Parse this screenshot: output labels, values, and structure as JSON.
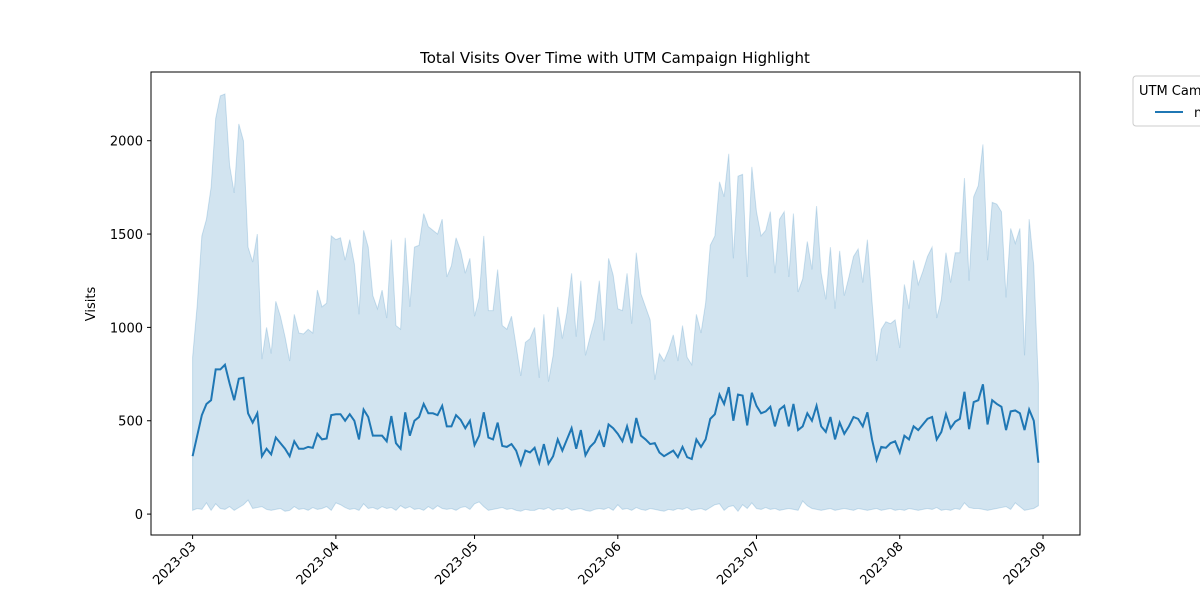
{
  "chart_data": {
    "type": "line",
    "title": "Total Visits Over Time with UTM Campaign Highlight",
    "y_label": "Visits",
    "legend_title": "UTM Campaign",
    "legend_position": "upper right outside",
    "x": [
      "2023-03-01",
      "2023-03-02",
      "2023-03-03",
      "2023-03-04",
      "2023-03-05",
      "2023-03-06",
      "2023-03-07",
      "2023-03-08",
      "2023-03-09",
      "2023-03-10",
      "2023-03-11",
      "2023-03-12",
      "2023-03-13",
      "2023-03-14",
      "2023-03-15",
      "2023-03-16",
      "2023-03-17",
      "2023-03-18",
      "2023-03-19",
      "2023-03-20",
      "2023-03-21",
      "2023-03-22",
      "2023-03-23",
      "2023-03-24",
      "2023-03-25",
      "2023-03-26",
      "2023-03-27",
      "2023-03-28",
      "2023-03-29",
      "2023-03-30",
      "2023-03-31",
      "2023-04-01",
      "2023-04-02",
      "2023-04-03",
      "2023-04-04",
      "2023-04-05",
      "2023-04-06",
      "2023-04-07",
      "2023-04-08",
      "2023-04-09",
      "2023-04-10",
      "2023-04-11",
      "2023-04-12",
      "2023-04-13",
      "2023-04-14",
      "2023-04-15",
      "2023-04-16",
      "2023-04-17",
      "2023-04-18",
      "2023-04-19",
      "2023-04-20",
      "2023-04-21",
      "2023-04-22",
      "2023-04-23",
      "2023-04-24",
      "2023-04-25",
      "2023-04-26",
      "2023-04-27",
      "2023-04-28",
      "2023-04-29",
      "2023-04-30",
      "2023-05-01",
      "2023-05-02",
      "2023-05-03",
      "2023-05-04",
      "2023-05-05",
      "2023-05-06",
      "2023-05-07",
      "2023-05-08",
      "2023-05-09",
      "2023-05-10",
      "2023-05-11",
      "2023-05-12",
      "2023-05-13",
      "2023-05-14",
      "2023-05-15",
      "2023-05-16",
      "2023-05-17",
      "2023-05-18",
      "2023-05-19",
      "2023-05-20",
      "2023-05-21",
      "2023-05-22",
      "2023-05-23",
      "2023-05-24",
      "2023-05-25",
      "2023-05-26",
      "2023-05-27",
      "2023-05-28",
      "2023-05-29",
      "2023-05-30",
      "2023-05-31",
      "2023-06-01",
      "2023-06-02",
      "2023-06-03",
      "2023-06-04",
      "2023-06-05",
      "2023-06-06",
      "2023-06-07",
      "2023-06-08",
      "2023-06-09",
      "2023-06-10",
      "2023-06-11",
      "2023-06-12",
      "2023-06-13",
      "2023-06-14",
      "2023-06-15",
      "2023-06-16",
      "2023-06-17",
      "2023-06-18",
      "2023-06-19",
      "2023-06-20",
      "2023-06-21",
      "2023-06-22",
      "2023-06-23",
      "2023-06-24",
      "2023-06-25",
      "2023-06-26",
      "2023-06-27",
      "2023-06-28",
      "2023-06-29",
      "2023-06-30",
      "2023-07-01",
      "2023-07-02",
      "2023-07-03",
      "2023-07-04",
      "2023-07-05",
      "2023-07-06",
      "2023-07-07",
      "2023-07-08",
      "2023-07-09",
      "2023-07-10",
      "2023-07-11",
      "2023-07-12",
      "2023-07-13",
      "2023-07-14",
      "2023-07-15",
      "2023-07-16",
      "2023-07-17",
      "2023-07-18",
      "2023-07-19",
      "2023-07-20",
      "2023-07-21",
      "2023-07-22",
      "2023-07-23",
      "2023-07-24",
      "2023-07-25",
      "2023-07-26",
      "2023-07-27",
      "2023-07-28",
      "2023-07-29",
      "2023-07-30",
      "2023-07-31",
      "2023-08-01",
      "2023-08-02",
      "2023-08-03",
      "2023-08-04",
      "2023-08-05",
      "2023-08-06",
      "2023-08-07",
      "2023-08-08",
      "2023-08-09",
      "2023-08-10",
      "2023-08-11",
      "2023-08-12",
      "2023-08-13",
      "2023-08-14",
      "2023-08-15",
      "2023-08-16",
      "2023-08-17",
      "2023-08-18",
      "2023-08-19",
      "2023-08-20",
      "2023-08-21",
      "2023-08-22",
      "2023-08-23",
      "2023-08-24",
      "2023-08-25",
      "2023-08-26",
      "2023-08-27",
      "2023-08-28",
      "2023-08-29",
      "2023-08-30",
      "2023-08-31"
    ],
    "series": [
      {
        "name": "none",
        "color": "#1f77b4",
        "values": [
          310,
          420,
          530,
          590,
          610,
          775,
          775,
          800,
          700,
          610,
          725,
          730,
          540,
          490,
          540,
          310,
          350,
          320,
          410,
          380,
          350,
          310,
          390,
          350,
          350,
          360,
          355,
          430,
          400,
          405,
          530,
          535,
          535,
          500,
          535,
          500,
          400,
          560,
          520,
          420,
          420,
          420,
          390,
          525,
          380,
          350,
          545,
          420,
          500,
          520,
          590,
          540,
          540,
          530,
          580,
          470,
          470,
          530,
          505,
          460,
          500,
          370,
          420,
          545,
          410,
          400,
          490,
          365,
          360,
          375,
          340,
          265,
          340,
          330,
          355,
          275,
          375,
          270,
          310,
          400,
          340,
          400,
          460,
          350,
          450,
          315,
          360,
          385,
          440,
          360,
          480,
          460,
          430,
          390,
          470,
          380,
          515,
          420,
          400,
          375,
          380,
          330,
          310,
          325,
          340,
          305,
          360,
          305,
          295,
          400,
          360,
          400,
          510,
          535,
          640,
          590,
          680,
          500,
          640,
          635,
          475,
          650,
          580,
          540,
          550,
          575,
          470,
          560,
          580,
          470,
          590,
          450,
          470,
          540,
          500,
          580,
          470,
          440,
          520,
          400,
          490,
          430,
          470,
          520,
          510,
          470,
          545,
          400,
          290,
          360,
          355,
          380,
          390,
          330,
          420,
          400,
          470,
          450,
          480,
          510,
          520,
          400,
          440,
          535,
          460,
          495,
          510,
          655,
          455,
          600,
          610,
          695,
          480,
          610,
          590,
          575,
          450,
          550,
          555,
          540,
          450,
          560,
          500,
          275
        ],
        "band_upper": [
          840,
          1120,
          1490,
          1580,
          1750,
          2120,
          2240,
          2250,
          1870,
          1720,
          2090,
          2000,
          1430,
          1350,
          1500,
          830,
          1000,
          860,
          1140,
          1060,
          950,
          820,
          1070,
          970,
          965,
          990,
          970,
          1200,
          1110,
          1130,
          1490,
          1470,
          1480,
          1360,
          1470,
          1340,
          1070,
          1520,
          1430,
          1170,
          1100,
          1200,
          1050,
          1470,
          1010,
          990,
          1480,
          1110,
          1430,
          1440,
          1610,
          1540,
          1520,
          1500,
          1580,
          1270,
          1330,
          1480,
          1410,
          1290,
          1370,
          1060,
          1160,
          1490,
          1090,
          1090,
          1310,
          1010,
          990,
          1060,
          900,
          740,
          920,
          940,
          1000,
          730,
          1070,
          710,
          850,
          1110,
          940,
          1080,
          1290,
          950,
          1250,
          850,
          950,
          1040,
          1250,
          930,
          1370,
          1280,
          1100,
          1090,
          1290,
          1020,
          1400,
          1180,
          1110,
          1040,
          720,
          860,
          820,
          880,
          960,
          820,
          1010,
          840,
          800,
          1070,
          970,
          1130,
          1440,
          1490,
          1780,
          1700,
          1930,
          1370,
          1810,
          1820,
          1270,
          1860,
          1620,
          1490,
          1520,
          1620,
          1290,
          1580,
          1620,
          1270,
          1610,
          1190,
          1260,
          1460,
          1310,
          1650,
          1290,
          1150,
          1430,
          1100,
          1410,
          1170,
          1270,
          1380,
          1420,
          1240,
          1470,
          1140,
          820,
          990,
          1030,
          1020,
          1040,
          890,
          1230,
          1100,
          1360,
          1230,
          1300,
          1380,
          1430,
          1050,
          1150,
          1400,
          1240,
          1400,
          1400,
          1800,
          1250,
          1700,
          1760,
          1980,
          1360,
          1670,
          1660,
          1620,
          1160,
          1530,
          1450,
          1530,
          850,
          1580,
          1330,
          700
        ],
        "band_lower": [
          20,
          30,
          25,
          60,
          20,
          55,
          30,
          25,
          40,
          20,
          35,
          50,
          75,
          30,
          35,
          40,
          25,
          20,
          25,
          30,
          15,
          20,
          40,
          25,
          30,
          20,
          35,
          25,
          30,
          40,
          20,
          60,
          50,
          35,
          25,
          30,
          20,
          55,
          30,
          35,
          25,
          40,
          30,
          35,
          20,
          45,
          30,
          40,
          25,
          30,
          20,
          40,
          25,
          45,
          30,
          25,
          30,
          20,
          35,
          40,
          25,
          55,
          65,
          40,
          20,
          25,
          30,
          35,
          25,
          30,
          20,
          15,
          25,
          20,
          20,
          30,
          25,
          35,
          20,
          30,
          25,
          35,
          20,
          25,
          30,
          20,
          15,
          25,
          30,
          25,
          35,
          20,
          50,
          25,
          30,
          20,
          35,
          25,
          20,
          30,
          25,
          20,
          15,
          25,
          20,
          30,
          25,
          35,
          20,
          25,
          30,
          20,
          35,
          50,
          55,
          20,
          40,
          45,
          15,
          50,
          30,
          60,
          30,
          25,
          35,
          25,
          30,
          20,
          25,
          30,
          25,
          20,
          70,
          45,
          30,
          25,
          20,
          25,
          30,
          20,
          25,
          30,
          25,
          20,
          30,
          25,
          20,
          25,
          30,
          20,
          25,
          30,
          20,
          25,
          20,
          30,
          25,
          20,
          25,
          30,
          25,
          35,
          20,
          25,
          20,
          30,
          25,
          60,
          35,
          30,
          30,
          25,
          20,
          25,
          30,
          35,
          40,
          25,
          60,
          40,
          20,
          25,
          30,
          45
        ]
      }
    ],
    "xlim": [
      "2023-02-20",
      "2023-09-09"
    ],
    "xticks": [
      {
        "value": "2023-03-01",
        "label": "2023-03"
      },
      {
        "value": "2023-04-01",
        "label": "2023-04"
      },
      {
        "value": "2023-05-01",
        "label": "2023-05"
      },
      {
        "value": "2023-06-01",
        "label": "2023-06"
      },
      {
        "value": "2023-07-01",
        "label": "2023-07"
      },
      {
        "value": "2023-08-01",
        "label": "2023-08"
      },
      {
        "value": "2023-09-01",
        "label": "2023-09"
      }
    ],
    "ylim": [
      -112,
      2368
    ],
    "yticks": [
      0,
      500,
      1000,
      1500,
      2000
    ],
    "grid": false
  }
}
